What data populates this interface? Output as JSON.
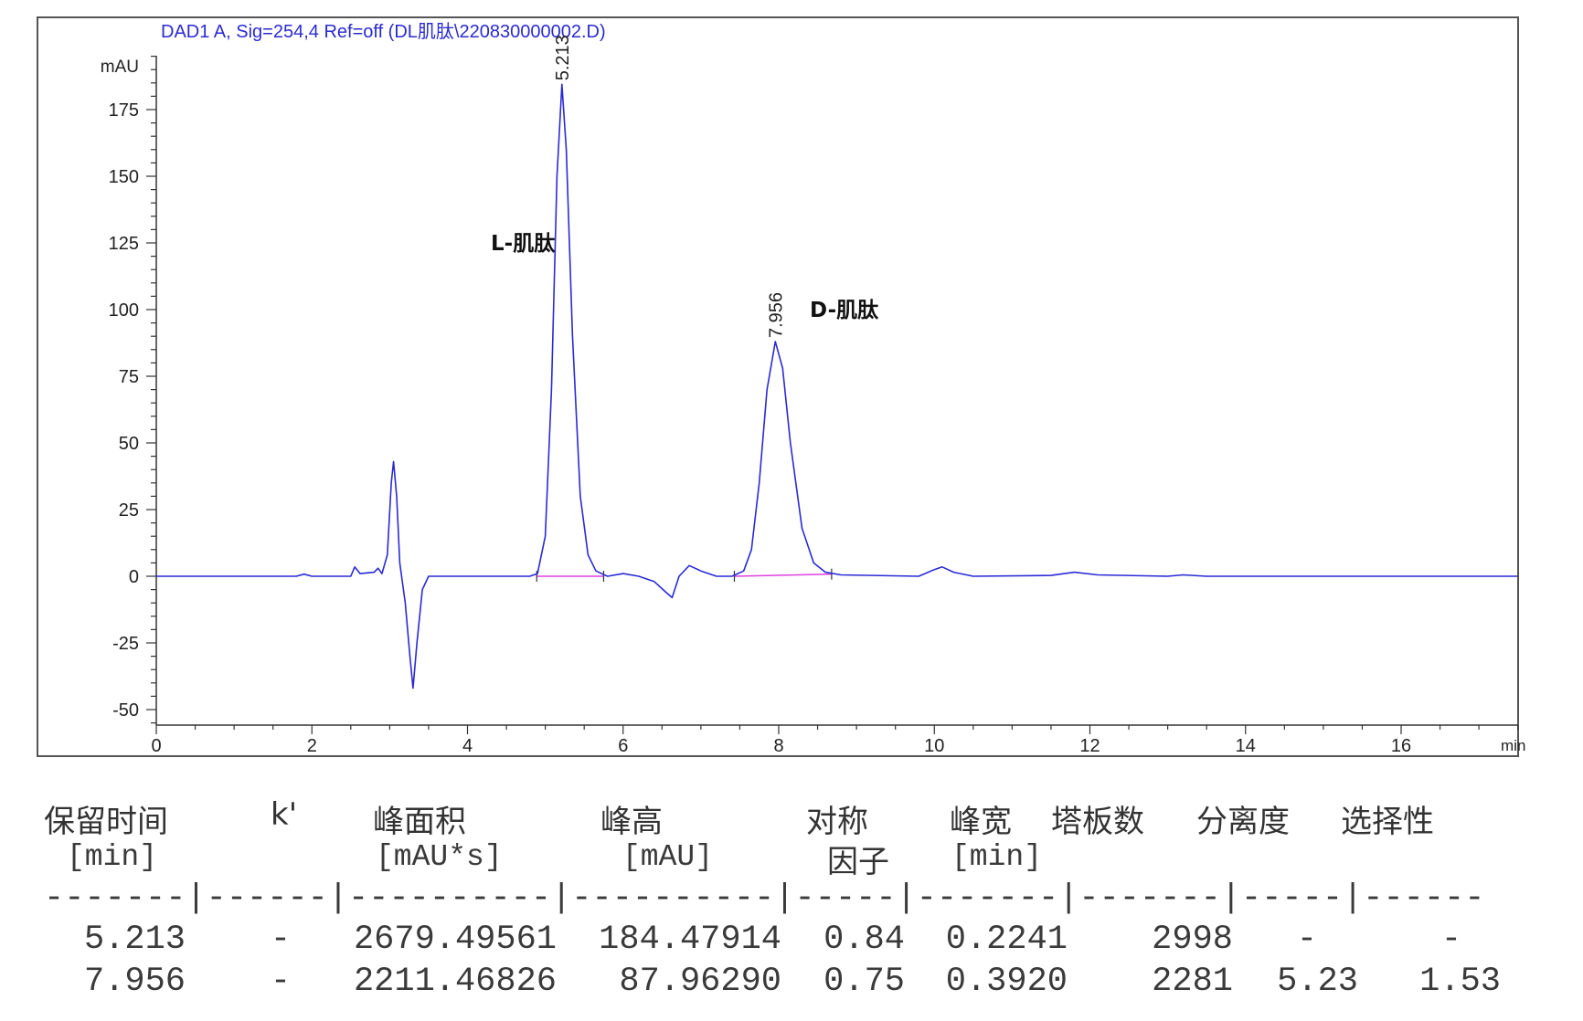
{
  "chart_data": {
    "type": "line",
    "title": "DAD1 A, Sig=254,4 Ref=off (DL肌肽\\220830000002.D)",
    "ylabel": "mAU",
    "xlabel": "min",
    "xlim": [
      0,
      17.5
    ],
    "ylim": [
      -67,
      209
    ],
    "xticks": [
      0,
      2,
      4,
      6,
      8,
      10,
      12,
      14,
      16
    ],
    "yticks": [
      -50,
      -25,
      0,
      25,
      50,
      75,
      100,
      125,
      150,
      175
    ],
    "grid": false,
    "colors": {
      "signal": "#2a2ad6",
      "baseline": "#e040e0",
      "title": "#2b2bd0"
    },
    "series": [
      {
        "x": [
          0,
          1.8,
          1.9,
          2.0,
          2.5,
          2.55,
          2.62,
          2.8,
          2.85,
          2.9,
          2.97,
          3.02,
          3.05,
          3.09,
          3.13,
          3.2,
          3.26,
          3.3,
          3.35,
          3.42,
          3.5,
          4.8,
          4.9,
          5.0,
          5.08,
          5.15,
          5.213,
          5.27,
          5.35,
          5.45,
          5.55,
          5.65,
          5.8,
          6.0,
          6.2,
          6.4,
          6.55,
          6.63,
          6.72,
          6.85,
          7.0,
          7.2,
          7.4,
          7.55,
          7.65,
          7.75,
          7.85,
          7.956,
          8.05,
          8.15,
          8.3,
          8.45,
          8.6,
          8.8,
          9.8,
          10.0,
          10.1,
          10.25,
          10.5,
          11.5,
          11.8,
          12.1,
          13.0,
          13.2,
          13.5,
          17.5
        ],
        "y": [
          0,
          0,
          0.8,
          0,
          0,
          3.5,
          1,
          1.5,
          3,
          1,
          8,
          35,
          43,
          30,
          5,
          -10,
          -30,
          -42,
          -25,
          -5,
          0,
          0,
          1,
          15,
          70,
          150,
          184.5,
          160,
          90,
          30,
          8,
          2,
          0,
          1,
          0,
          -2,
          -6,
          -8,
          0,
          4,
          2,
          0,
          0,
          2,
          10,
          35,
          70,
          88,
          78,
          50,
          18,
          5,
          1.5,
          0.5,
          0,
          2.5,
          3.5,
          1.5,
          0,
          0.3,
          1.5,
          0.5,
          0,
          0.5,
          0,
          0
        ]
      }
    ],
    "peaks": [
      {
        "rt": "5.213",
        "x": 5.213,
        "y": 184.5
      },
      {
        "rt": "7.956",
        "x": 7.956,
        "y": 88
      }
    ],
    "baselines": [
      [
        4.89,
        0,
        5.75,
        0
      ],
      [
        7.43,
        0,
        8.68,
        0.8
      ]
    ],
    "annotations": [
      {
        "text": "L-肌肽",
        "x": 4.3,
        "y": 125
      },
      {
        "text": "D-肌肽",
        "x": 8.4,
        "y": 100
      }
    ]
  },
  "table": {
    "headers": [
      "保留时间",
      "k'",
      "峰面积",
      "峰高",
      "对称",
      "峰宽",
      "塔板数",
      "分离度",
      "选择性"
    ],
    "units": [
      "[min]",
      "[mAU*s]",
      "[mAU]",
      "因子",
      "[min]"
    ],
    "separator": "-------|------|----------|----------|-----|-------|-------|-----|------",
    "rows": [
      [
        "5.213",
        "-",
        "2679.49561",
        "184.47914",
        "0.84",
        "0.2241",
        "2998",
        "-",
        "-"
      ],
      [
        "7.956",
        "-",
        "2211.46826",
        "87.96290",
        "0.75",
        "0.3920",
        "2281",
        "5.23",
        "1.53"
      ]
    ]
  }
}
